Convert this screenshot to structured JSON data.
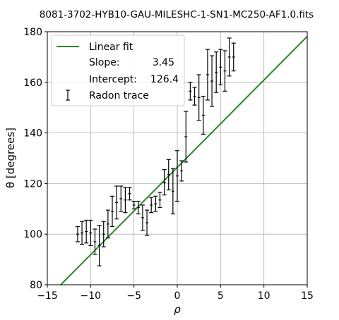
{
  "chart_data": {
    "type": "scatter",
    "title": "8081-3702-HYB10-GAU-MILESHC-1-SN1-MC250-AF1.0.fits",
    "xlabel": "ρ",
    "ylabel": "θ [degrees]",
    "xlim": [
      -15,
      15
    ],
    "ylim": [
      80,
      180
    ],
    "xticks": [
      -15,
      -10,
      -5,
      0,
      5,
      10,
      15
    ],
    "yticks": [
      80,
      100,
      120,
      140,
      160,
      180
    ],
    "xtick_labels": [
      "−15",
      "−10",
      "−5",
      "0",
      "5",
      "10",
      "15"
    ],
    "ytick_labels": [
      "80",
      "100",
      "120",
      "140",
      "160",
      "180"
    ],
    "grid": true,
    "legend_position": "top-left",
    "fit": {
      "label": "Linear fit",
      "slope": 3.45,
      "intercept": 126.4,
      "color": "#228b22",
      "slope_label": "Slope:",
      "slope_value": "3.45",
      "intercept_label": "Intercept:",
      "intercept_value": "126.4"
    },
    "series": [
      {
        "name": "Radon trace",
        "color": "#000000",
        "points": [
          {
            "x": -11.5,
            "y": 100.0,
            "err": 3.0
          },
          {
            "x": -11.0,
            "y": 100.5,
            "err": 4.5
          },
          {
            "x": -10.5,
            "y": 101.0,
            "err": 4.5
          },
          {
            "x": -10.0,
            "y": 100.5,
            "err": 5.0
          },
          {
            "x": -9.5,
            "y": 97.0,
            "err": 5.0
          },
          {
            "x": -9.0,
            "y": 95.5,
            "err": 8.0
          },
          {
            "x": -8.5,
            "y": 100.0,
            "err": 5.0
          },
          {
            "x": -8.0,
            "y": 104.0,
            "err": 5.5
          },
          {
            "x": -7.5,
            "y": 109.0,
            "err": 6.0
          },
          {
            "x": -7.0,
            "y": 112.5,
            "err": 6.5
          },
          {
            "x": -6.5,
            "y": 114.0,
            "err": 5.0
          },
          {
            "x": -6.0,
            "y": 113.5,
            "err": 5.0
          },
          {
            "x": -5.5,
            "y": 116.0,
            "err": 2.5
          },
          {
            "x": -5.0,
            "y": 111.5,
            "err": 1.5
          },
          {
            "x": -4.5,
            "y": 110.5,
            "err": 2.5
          },
          {
            "x": -4.0,
            "y": 106.5,
            "err": 5.0
          },
          {
            "x": -3.5,
            "y": 104.5,
            "err": 5.0
          },
          {
            "x": -3.0,
            "y": 111.5,
            "err": 3.0
          },
          {
            "x": -2.5,
            "y": 112.0,
            "err": 3.0
          },
          {
            "x": -2.0,
            "y": 113.5,
            "err": 3.0
          },
          {
            "x": -1.5,
            "y": 120.5,
            "err": 5.0
          },
          {
            "x": -1.0,
            "y": 123.5,
            "err": 6.0
          },
          {
            "x": -0.5,
            "y": 117.0,
            "err": 9.0
          },
          {
            "x": 0.0,
            "y": 123.0,
            "err": 10.0
          },
          {
            "x": 0.5,
            "y": 125.0,
            "err": 4.0
          },
          {
            "x": 1.0,
            "y": 138.5,
            "err": 10.0
          },
          {
            "x": 1.5,
            "y": 156.5,
            "err": 3.5
          },
          {
            "x": 2.0,
            "y": 154.5,
            "err": 3.5
          },
          {
            "x": 2.5,
            "y": 154.0,
            "err": 9.0
          },
          {
            "x": 3.0,
            "y": 147.0,
            "err": 7.5
          },
          {
            "x": 3.5,
            "y": 163.0,
            "err": 10.0
          },
          {
            "x": 4.0,
            "y": 160.5,
            "err": 10.0
          },
          {
            "x": 4.5,
            "y": 164.0,
            "err": 8.0
          },
          {
            "x": 5.0,
            "y": 166.0,
            "err": 7.0
          },
          {
            "x": 5.5,
            "y": 164.5,
            "err": 8.0
          },
          {
            "x": 6.0,
            "y": 170.0,
            "err": 7.5
          },
          {
            "x": 6.5,
            "y": 170.0,
            "err": 5.5
          }
        ]
      }
    ]
  }
}
